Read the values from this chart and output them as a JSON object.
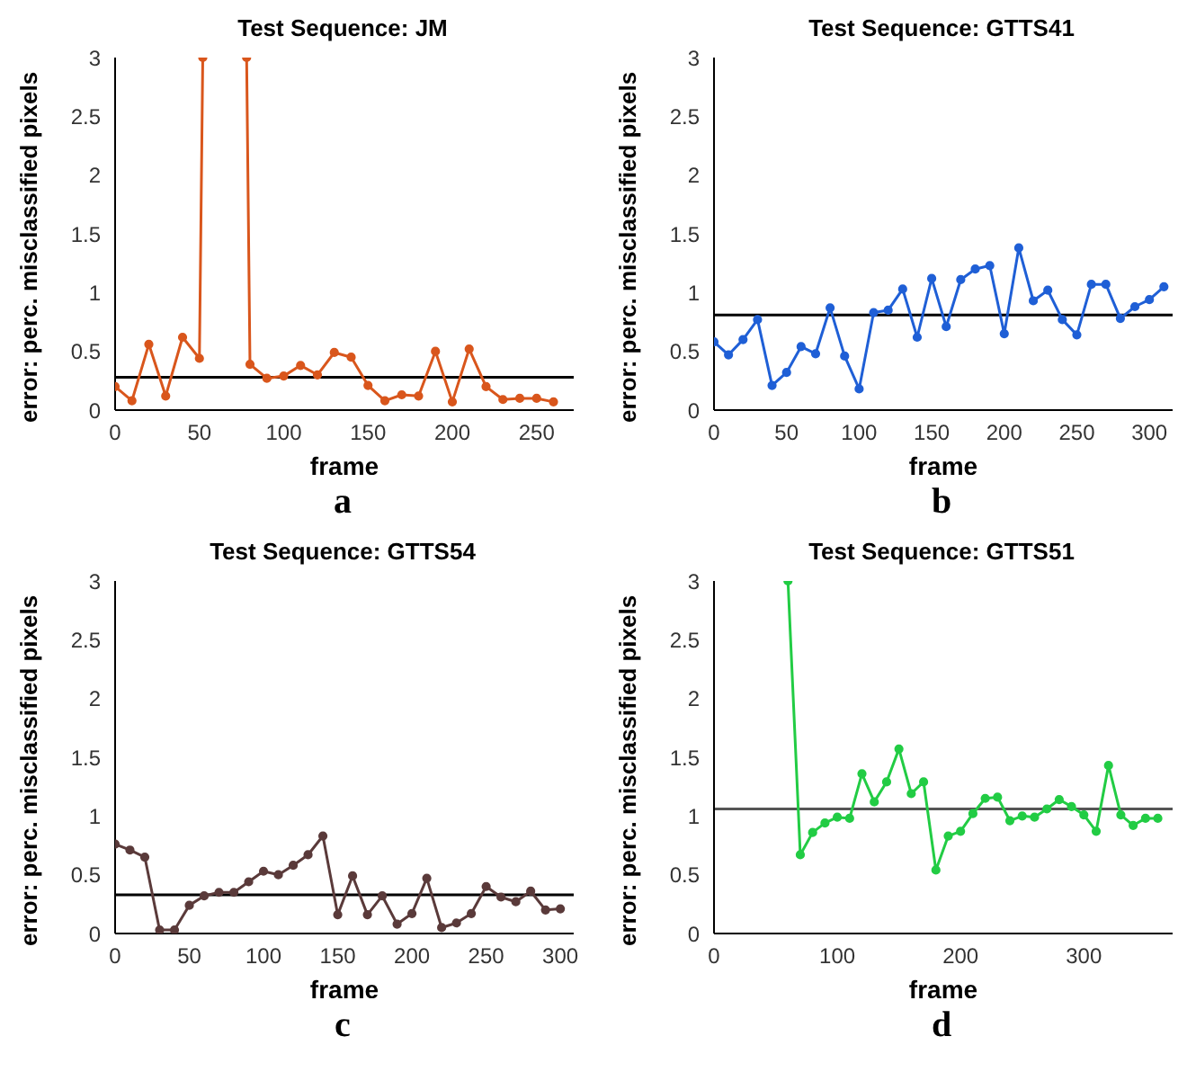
{
  "chart_data": [
    {
      "type": "line",
      "title": "Test Sequence: JM",
      "xlabel": "frame",
      "ylabel": "error: perc. misclassified pixels",
      "color": "#d9561c",
      "marker": "circle",
      "grid": false,
      "x": [
        0,
        10,
        20,
        30,
        40,
        50,
        52,
        65,
        78,
        80,
        90,
        100,
        110,
        120,
        130,
        140,
        150,
        160,
        170,
        180,
        190,
        200,
        210,
        220,
        230,
        240,
        250,
        260
      ],
      "values": [
        0.2,
        0.08,
        0.56,
        0.12,
        0.62,
        0.44,
        3,
        null,
        3,
        0.39,
        0.27,
        0.29,
        0.38,
        0.3,
        0.49,
        0.45,
        0.21,
        0.08,
        0.13,
        0.12,
        0.5,
        0.07,
        0.52,
        0.2,
        0.09,
        0.1,
        0.1,
        0.07
      ],
      "xlim": [
        0,
        272
      ],
      "xticks": [
        0,
        50,
        100,
        150,
        200,
        250
      ],
      "ylim": [
        0,
        3
      ],
      "yticks": [
        0,
        0.5,
        1,
        1.5,
        2,
        2.5,
        3
      ],
      "ref_lines": [
        {
          "axis": "y",
          "value": 0.28,
          "color": "#000000"
        }
      ],
      "annotations": [
        "a"
      ]
    },
    {
      "type": "line",
      "title": "Test Sequence: GTTS41",
      "xlabel": "frame",
      "ylabel": "error: perc. misclassified pixels",
      "color": "#1f5fd6",
      "marker": "circle",
      "grid": false,
      "x": [
        0,
        10,
        20,
        30,
        40,
        50,
        60,
        70,
        80,
        90,
        100,
        110,
        120,
        130,
        140,
        150,
        160,
        170,
        180,
        190,
        200,
        210,
        220,
        230,
        240,
        250,
        260,
        270,
        280,
        290,
        300,
        310
      ],
      "values": [
        0.58,
        0.47,
        0.6,
        0.77,
        0.21,
        0.32,
        0.54,
        0.48,
        0.87,
        0.46,
        0.18,
        0.83,
        0.85,
        1.03,
        0.62,
        1.12,
        0.71,
        1.11,
        1.2,
        1.23,
        0.65,
        1.38,
        0.93,
        1.02,
        0.77,
        0.64,
        1.07,
        1.07,
        0.78,
        0.88,
        0.94,
        1.05
      ],
      "xlim": [
        0,
        316
      ],
      "xticks": [
        0,
        50,
        100,
        150,
        200,
        250,
        300
      ],
      "ylim": [
        0,
        3
      ],
      "yticks": [
        0,
        0.5,
        1,
        1.5,
        2,
        2.5,
        3
      ],
      "ref_lines": [
        {
          "axis": "y",
          "value": 0.81,
          "color": "#000000"
        }
      ],
      "annotations": [
        "b"
      ]
    },
    {
      "type": "line",
      "title": "Test Sequence: GTTS54",
      "xlabel": "frame",
      "ylabel": "error: perc. misclassified pixels",
      "color": "#5a3a3a",
      "marker": "circle",
      "grid": false,
      "x": [
        0,
        10,
        20,
        30,
        40,
        50,
        60,
        70,
        80,
        90,
        100,
        110,
        120,
        130,
        140,
        150,
        160,
        170,
        180,
        190,
        200,
        210,
        220,
        230,
        240,
        250,
        260,
        270,
        280,
        290,
        300
      ],
      "values": [
        0.76,
        0.71,
        0.65,
        0.03,
        0.03,
        0.24,
        0.32,
        0.35,
        0.35,
        0.44,
        0.53,
        0.5,
        0.58,
        0.67,
        0.83,
        0.16,
        0.49,
        0.16,
        0.32,
        0.08,
        0.17,
        0.47,
        0.05,
        0.09,
        0.17,
        0.4,
        0.31,
        0.27,
        0.36,
        0.2,
        0.21
      ],
      "xlim": [
        0,
        309
      ],
      "xticks": [
        0,
        50,
        100,
        150,
        200,
        250,
        300
      ],
      "ylim": [
        0,
        3
      ],
      "yticks": [
        0,
        0.5,
        1,
        1.5,
        2,
        2.5,
        3
      ],
      "ref_lines": [
        {
          "axis": "y",
          "value": 0.33,
          "color": "#000000"
        }
      ],
      "annotations": [
        "c"
      ]
    },
    {
      "type": "line",
      "title": "Test Sequence: GTTS51",
      "xlabel": "frame",
      "ylabel": "error: perc. misclassified pixels",
      "color": "#22cc44",
      "marker": "circle",
      "grid": false,
      "x": [
        60,
        70,
        80,
        90,
        100,
        110,
        120,
        130,
        140,
        150,
        160,
        170,
        180,
        190,
        200,
        210,
        220,
        230,
        240,
        250,
        260,
        270,
        280,
        290,
        300,
        310,
        320,
        330,
        340,
        350,
        360
      ],
      "values": [
        3,
        0.67,
        0.86,
        0.94,
        0.99,
        0.98,
        1.36,
        1.12,
        1.29,
        1.57,
        1.19,
        1.29,
        0.54,
        0.83,
        0.87,
        1.02,
        1.15,
        1.16,
        0.96,
        1,
        0.99,
        1.06,
        1.14,
        1.08,
        1.01,
        0.87,
        1.43,
        1.01,
        0.92,
        0.98,
        0.98
      ],
      "xlim": [
        0,
        372
      ],
      "xticks": [
        0,
        100,
        200,
        300
      ],
      "ylim": [
        0,
        3
      ],
      "yticks": [
        0,
        0.5,
        1,
        1.5,
        2,
        2.5,
        3
      ],
      "ref_lines": [
        {
          "axis": "y",
          "value": 1.06,
          "color": "#555555"
        }
      ],
      "annotations": [
        "d"
      ]
    }
  ]
}
